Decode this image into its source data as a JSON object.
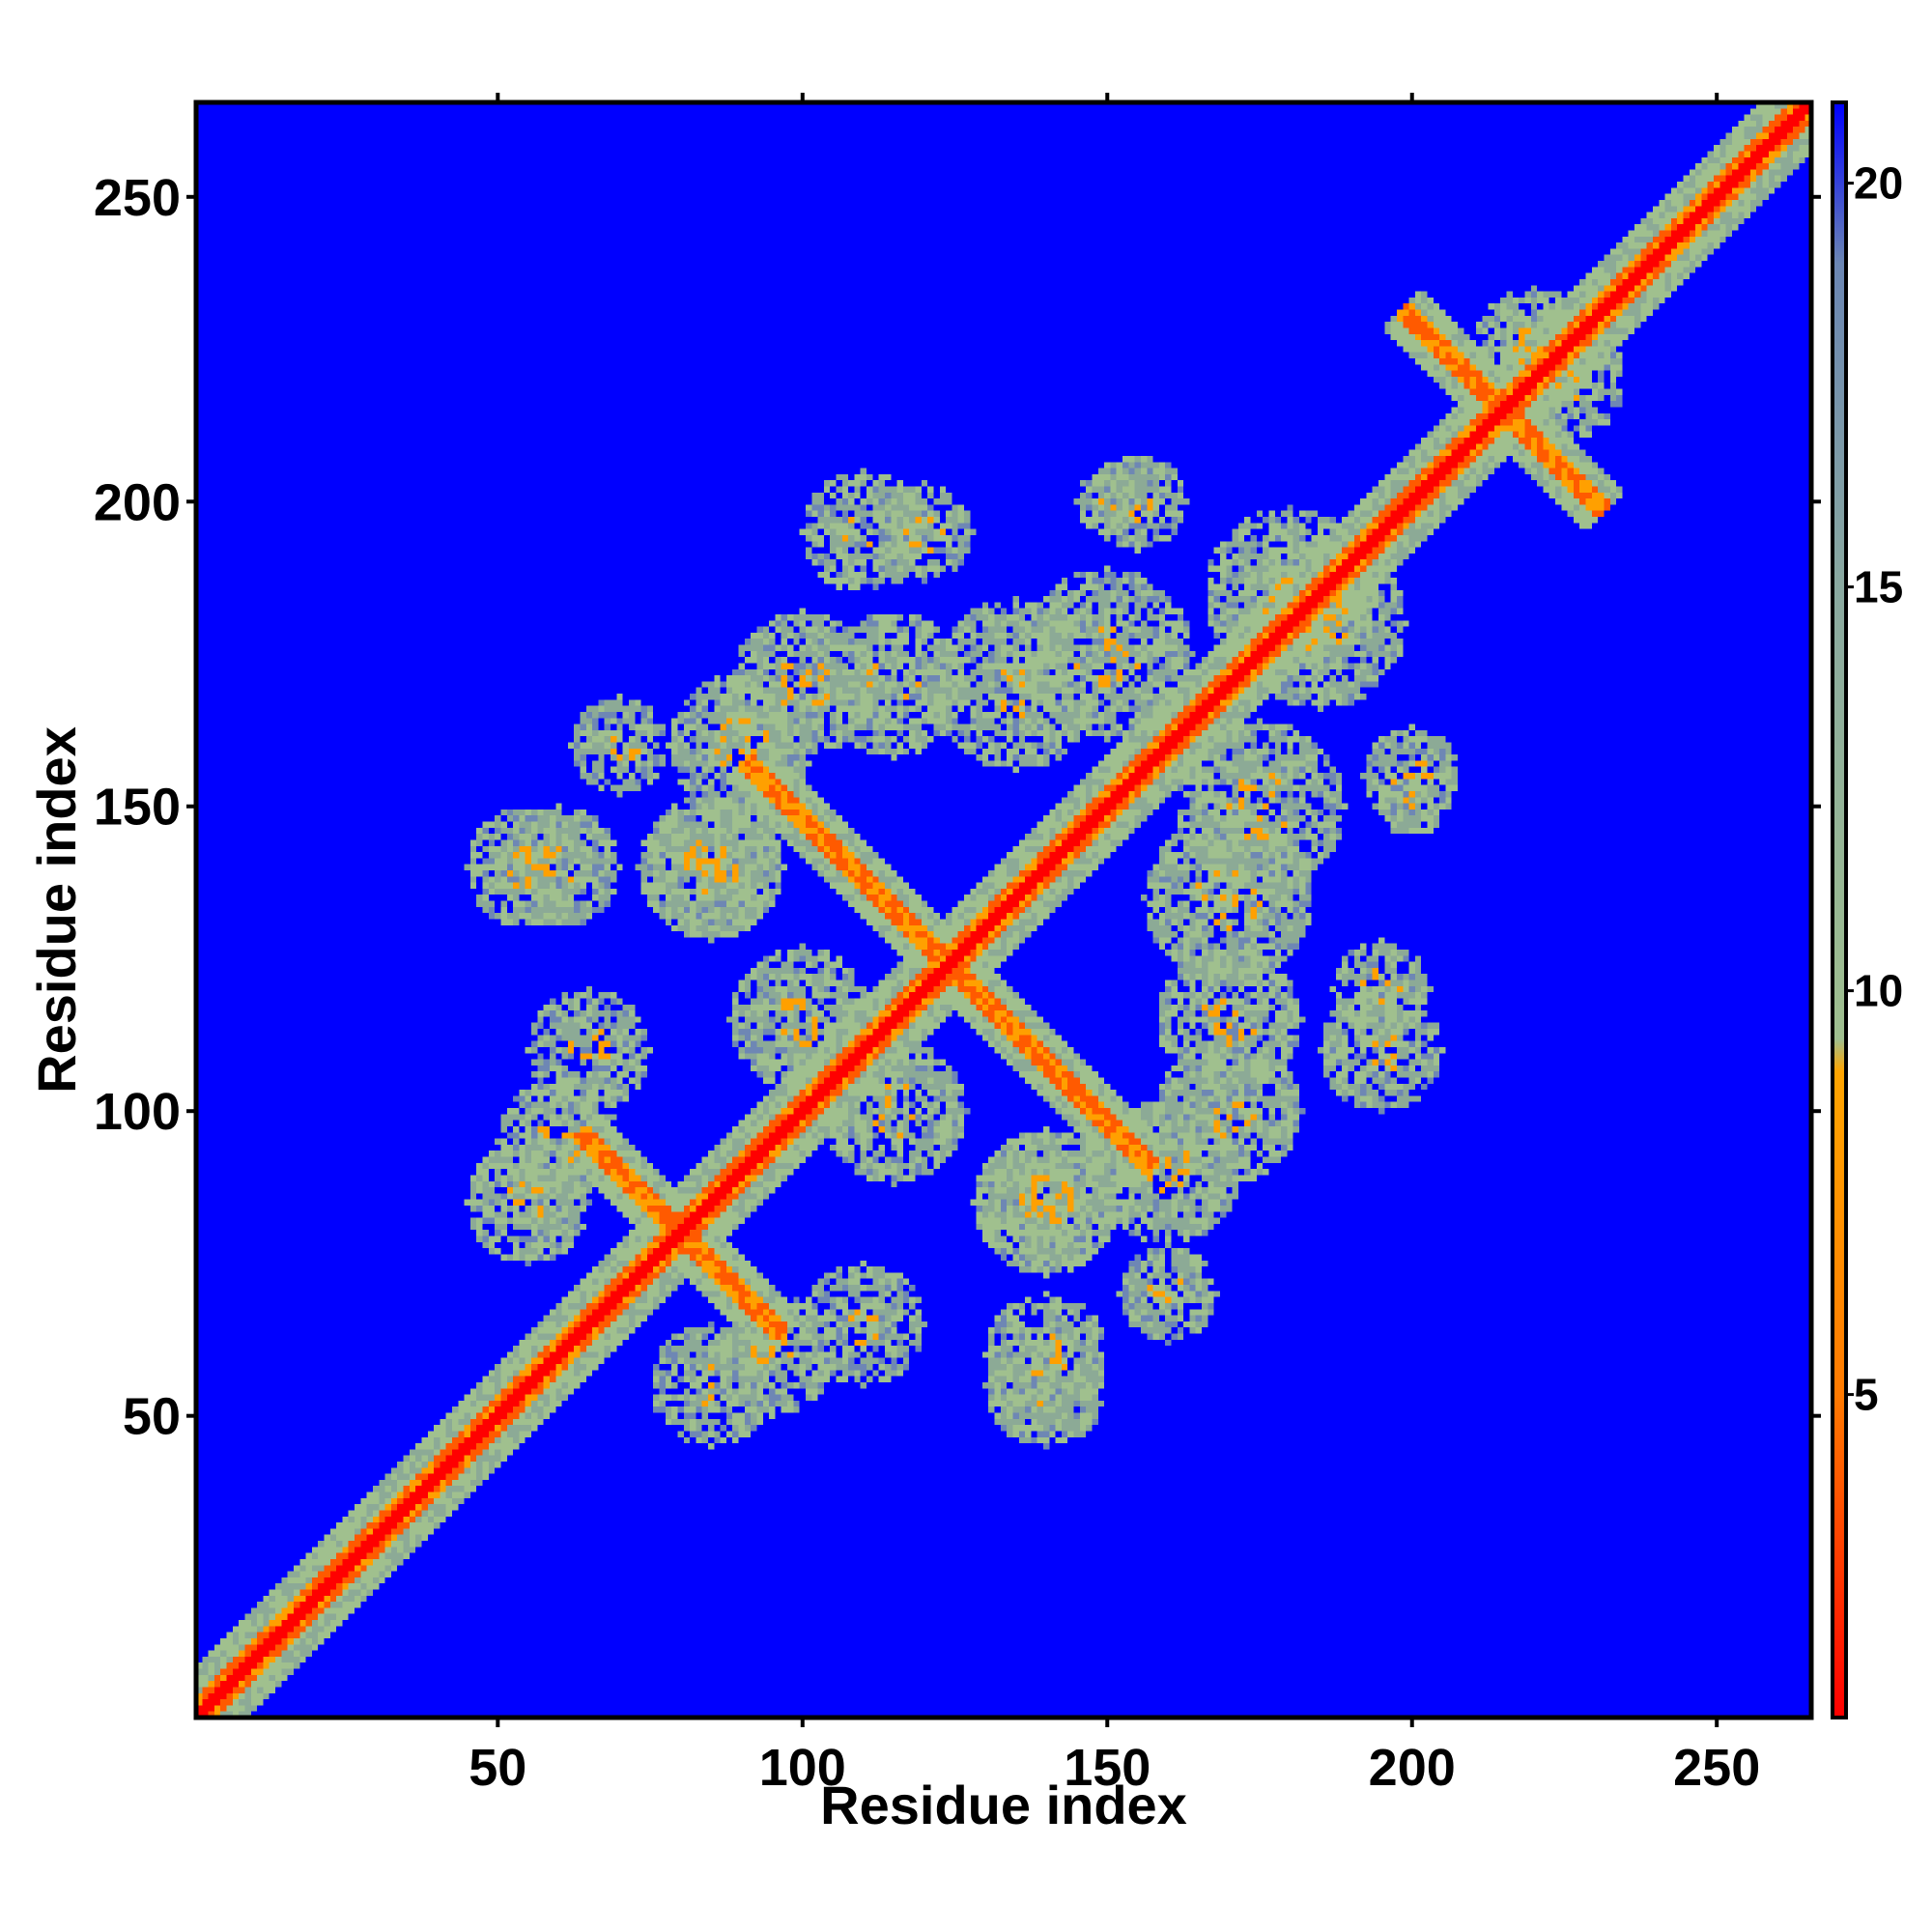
{
  "chart_data": {
    "type": "heatmap",
    "title": "",
    "xlabel": "Residue index",
    "ylabel": "Residue index",
    "x_range": [
      1,
      265
    ],
    "y_range": [
      1,
      265
    ],
    "x_ticks": [
      50,
      100,
      150,
      200,
      250
    ],
    "y_ticks": [
      50,
      100,
      150,
      200,
      250
    ],
    "colorbar": {
      "ticks": [
        5,
        10,
        15,
        20
      ],
      "range": [
        1,
        21
      ],
      "colors": [
        "#ff0000",
        "#ff7a00",
        "#ffa500",
        "#9fbf8f",
        "#8aa9a0",
        "#6b86b3",
        "#0000ff"
      ],
      "stops": [
        0,
        0.2,
        0.4,
        0.42,
        0.7,
        0.9,
        1
      ]
    },
    "colors": {
      "background": "#0000ff",
      "near": "#ff0000",
      "mid": "#ffa500",
      "far": "#9fbf8f"
    },
    "values_description_note": "",
    "contact_features": [
      {
        "kind": "antidiagonal",
        "center": [
          124,
          124
        ],
        "half_length": 24
      },
      {
        "kind": "antidiagonal",
        "center": [
          80,
          80
        ],
        "half_length": 12
      },
      {
        "kind": "antidiagonal",
        "center": [
          215,
          215
        ],
        "half_length": 12
      },
      {
        "kind": "blob",
        "center": [
          85,
          140
        ],
        "radius": 12
      },
      {
        "kind": "blob",
        "center": [
          100,
          170
        ],
        "radius": 12
      },
      {
        "kind": "blob",
        "center": [
          110,
          195
        ],
        "radius": 10
      },
      {
        "kind": "blob",
        "center": [
          135,
          170
        ],
        "radius": 14
      },
      {
        "kind": "blob",
        "center": [
          155,
          200
        ],
        "radius": 8
      },
      {
        "kind": "blob",
        "center": [
          180,
          185
        ],
        "radius": 14
      },
      {
        "kind": "blob",
        "center": [
          175,
          150
        ],
        "radius": 14
      },
      {
        "kind": "blob",
        "center": [
          195,
          120
        ],
        "radius": 8
      },
      {
        "kind": "blob",
        "center": [
          170,
          115
        ],
        "radius": 12
      },
      {
        "kind": "blob",
        "center": [
          160,
          90
        ],
        "radius": 12
      },
      {
        "kind": "blob",
        "center": [
          140,
          85
        ],
        "radius": 12
      },
      {
        "kind": "blob",
        "center": [
          115,
          100
        ],
        "radius": 12
      },
      {
        "kind": "blob",
        "center": [
          55,
          85
        ],
        "radius": 10
      },
      {
        "kind": "blob",
        "center": [
          60,
          140
        ],
        "radius": 10
      },
      {
        "kind": "blob",
        "center": [
          65,
          110
        ],
        "radius": 10
      },
      {
        "kind": "blob",
        "center": [
          95,
          60
        ],
        "radius": 10
      },
      {
        "kind": "blob",
        "center": [
          140,
          55
        ],
        "radius": 10
      },
      {
        "kind": "blob",
        "center": [
          160,
          70
        ],
        "radius": 8
      },
      {
        "kind": "blob",
        "center": [
          225,
          220
        ],
        "radius": 10
      },
      {
        "kind": "blob",
        "center": [
          200,
          150
        ],
        "radius": 5
      }
    ]
  }
}
